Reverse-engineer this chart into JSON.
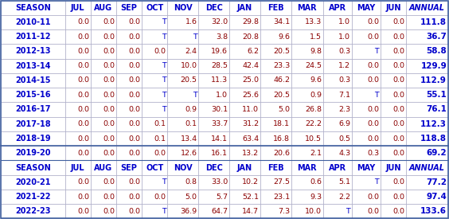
{
  "headers": [
    "SEASON",
    "JUL",
    "AUG",
    "SEP",
    "OCT",
    "NOV",
    "DEC",
    "JAN",
    "FEB",
    "MAR",
    "APR",
    "MAY",
    "JUN",
    "ANNUAL"
  ],
  "rows": [
    [
      "2010-11",
      "0.0",
      "0.0",
      "0.0",
      "T",
      "1.6",
      "32.0",
      "29.8",
      "34.1",
      "13.3",
      "1.0",
      "0.0",
      "0.0",
      "111.8"
    ],
    [
      "2011-12",
      "0.0",
      "0.0",
      "0.0",
      "T",
      "T",
      "3.8",
      "20.8",
      "9.6",
      "1.5",
      "1.0",
      "0.0",
      "0.0",
      "36.7"
    ],
    [
      "2012-13",
      "0.0",
      "0.0",
      "0.0",
      "0.0",
      "2.4",
      "19.6",
      "6.2",
      "20.5",
      "9.8",
      "0.3",
      "T",
      "0.0",
      "58.8"
    ],
    [
      "2013-14",
      "0.0",
      "0.0",
      "0.0",
      "T",
      "10.0",
      "28.5",
      "42.4",
      "23.3",
      "24.5",
      "1.2",
      "0.0",
      "0.0",
      "129.9"
    ],
    [
      "2014-15",
      "0.0",
      "0.0",
      "0.0",
      "T",
      "20.5",
      "11.3",
      "25.0",
      "46.2",
      "9.6",
      "0.3",
      "0.0",
      "0.0",
      "112.9"
    ],
    [
      "2015-16",
      "0.0",
      "0.0",
      "0.0",
      "T",
      "T",
      "1.0",
      "25.6",
      "20.5",
      "0.9",
      "7.1",
      "T",
      "0.0",
      "55.1"
    ],
    [
      "2016-17",
      "0.0",
      "0.0",
      "0.0",
      "T",
      "0.9",
      "30.1",
      "11.0",
      "5.0",
      "26.8",
      "2.3",
      "0.0",
      "0.0",
      "76.1"
    ],
    [
      "2017-18",
      "0.0",
      "0.0",
      "0.0",
      "0.1",
      "0.1",
      "33.7",
      "31.2",
      "18.1",
      "22.2",
      "6.9",
      "0.0",
      "0.0",
      "112.3"
    ],
    [
      "2018-19",
      "0.0",
      "0.0",
      "0.0",
      "0.1",
      "13.4",
      "14.1",
      "63.4",
      "16.8",
      "10.5",
      "0.5",
      "0.0",
      "0.0",
      "118.8"
    ],
    [
      "2019-20",
      "0.0",
      "0.0",
      "0.0",
      "0.0",
      "12.6",
      "16.1",
      "13.2",
      "20.6",
      "2.1",
      "4.3",
      "0.3",
      "0.0",
      "69.2"
    ],
    [
      "2020-21",
      "0.0",
      "0.0",
      "0.0",
      "T",
      "0.8",
      "33.0",
      "10.2",
      "27.5",
      "0.6",
      "5.1",
      "T",
      "0.0",
      "77.2"
    ],
    [
      "2021-22",
      "0.0",
      "0.0",
      "0.0",
      "0.0",
      "5.0",
      "5.7",
      "52.1",
      "23.1",
      "9.3",
      "2.2",
      "0.0",
      "0.0",
      "97.4"
    ],
    [
      "2022-23",
      "0.0",
      "0.0",
      "0.0",
      "T",
      "36.9",
      "64.7",
      "14.7",
      "7.3",
      "10.0",
      "T",
      "0.0",
      "0.0",
      "133.6"
    ]
  ],
  "second_header_before_index": 10,
  "bg_white": "#ffffff",
  "border_color": "#a0a0c0",
  "header_text_color": "#0000cc",
  "data_season_color": "#0000cc",
  "data_num_color": "#8b0000",
  "data_T_color": "#0000cc",
  "annual_color": "#0000cc",
  "header_fontsize": 7.0,
  "season_fontsize": 7.0,
  "data_fontsize": 6.8,
  "annual_fontsize": 7.5,
  "figsize": [
    5.64,
    2.75
  ],
  "dpi": 100,
  "col_widths_rel": [
    1.45,
    0.58,
    0.58,
    0.58,
    0.58,
    0.7,
    0.7,
    0.7,
    0.7,
    0.72,
    0.65,
    0.65,
    0.58,
    0.95
  ]
}
